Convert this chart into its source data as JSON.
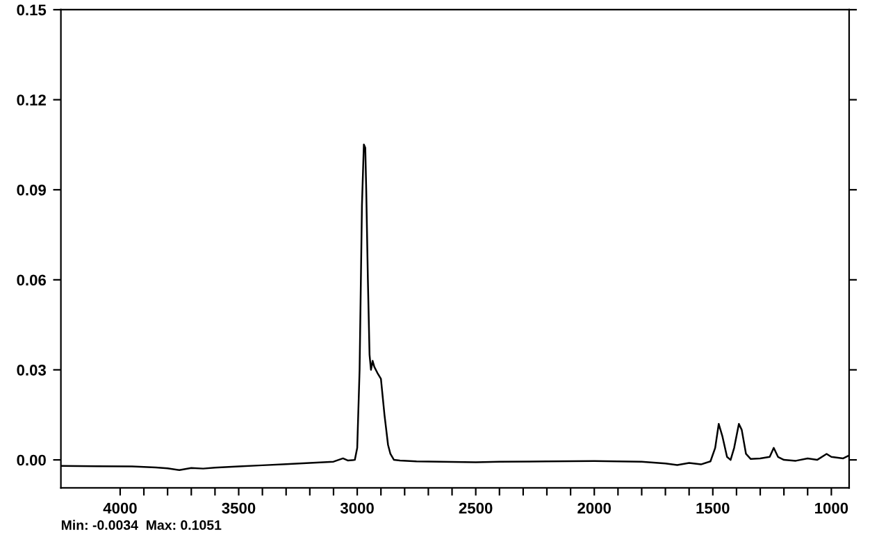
{
  "chart_data": {
    "type": "line",
    "x": [
      4250,
      4100,
      3950,
      3850,
      3800,
      3750,
      3700,
      3650,
      3600,
      3500,
      3400,
      3300,
      3200,
      3100,
      3060,
      3040,
      3010,
      3000,
      2990,
      2980,
      2972,
      2966,
      2962,
      2955,
      2948,
      2942,
      2935,
      2928,
      2915,
      2900,
      2885,
      2870,
      2860,
      2845,
      2820,
      2750,
      2600,
      2500,
      2400,
      2200,
      2000,
      1900,
      1800,
      1700,
      1650,
      1600,
      1550,
      1510,
      1490,
      1475,
      1460,
      1440,
      1425,
      1410,
      1390,
      1378,
      1360,
      1340,
      1300,
      1260,
      1243,
      1225,
      1200,
      1150,
      1100,
      1060,
      1020,
      1000,
      950,
      925
    ],
    "series": [
      {
        "color": "#000000",
        "values": [
          -0.002,
          -0.0021,
          -0.0022,
          -0.0025,
          -0.0028,
          -0.0034,
          -0.0027,
          -0.0029,
          -0.0026,
          -0.0022,
          -0.0018,
          -0.0014,
          -0.001,
          -0.0006,
          0.0005,
          -0.0002,
          0.0,
          0.004,
          0.03,
          0.085,
          0.1051,
          0.104,
          0.09,
          0.06,
          0.035,
          0.03,
          0.033,
          0.031,
          0.029,
          0.027,
          0.015,
          0.005,
          0.002,
          0.0,
          -0.0002,
          -0.0005,
          -0.0007,
          -0.0008,
          -0.0006,
          -0.0005,
          -0.0004,
          -0.0005,
          -0.0006,
          -0.0012,
          -0.0017,
          -0.001,
          -0.0015,
          -0.0005,
          0.004,
          0.012,
          0.008,
          0.001,
          0.0,
          0.004,
          0.012,
          0.01,
          0.002,
          0.0003,
          0.0005,
          0.001,
          0.004,
          0.001,
          0.0,
          -0.0003,
          0.0005,
          0.0,
          0.002,
          0.001,
          0.0005,
          0.0015
        ]
      }
    ],
    "xlim": [
      4250,
      925
    ],
    "xticks": [
      4000,
      {
        "value": 3900,
        "label": null
      },
      {
        "value": 3800,
        "label": null
      },
      {
        "value": 3700,
        "label": null
      },
      {
        "value": 3600,
        "label": null
      },
      3500,
      {
        "value": 3400,
        "label": null
      },
      {
        "value": 3300,
        "label": null
      },
      {
        "value": 3200,
        "label": null
      },
      {
        "value": 3100,
        "label": null
      },
      3000,
      {
        "value": 2900,
        "label": null
      },
      {
        "value": 2800,
        "label": null
      },
      {
        "value": 2700,
        "label": null
      },
      {
        "value": 2600,
        "label": null
      },
      2500,
      {
        "value": 2400,
        "label": null
      },
      {
        "value": 2300,
        "label": null
      },
      {
        "value": 2200,
        "label": null
      },
      {
        "value": 2100,
        "label": null
      },
      2000,
      {
        "value": 1900,
        "label": null
      },
      {
        "value": 1800,
        "label": null
      },
      {
        "value": 1700,
        "label": null
      },
      {
        "value": 1600,
        "label": null
      },
      1500,
      {
        "value": 1400,
        "label": null
      },
      {
        "value": 1300,
        "label": null
      },
      {
        "value": 1200,
        "label": null
      },
      {
        "value": 1100,
        "label": null
      },
      1000
    ],
    "ylim": [
      -0.0093,
      0.15
    ],
    "yticks": [
      {
        "value": 0.0,
        "label": "0.00"
      },
      {
        "value": 0.03,
        "label": "0.03"
      },
      {
        "value": 0.06,
        "label": "0.06"
      },
      {
        "value": 0.09,
        "label": "0.09"
      },
      {
        "value": 0.12,
        "label": "0.12"
      },
      {
        "value": 0.15,
        "label": "0.15"
      }
    ],
    "grid": false,
    "legend": false,
    "annotations": [
      "Min: -0.0034  Max: 0.1051"
    ]
  }
}
